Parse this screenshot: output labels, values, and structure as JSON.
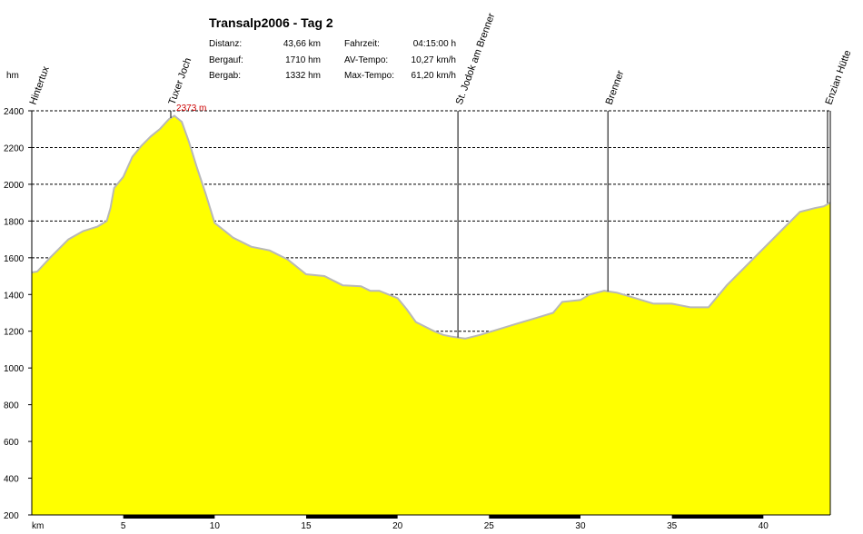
{
  "header": {
    "title": "Transalp2006 - Tag 2",
    "stats": [
      {
        "label": "Distanz:",
        "value": "43,66 km"
      },
      {
        "label": "Bergauf:",
        "value": "1710 hm"
      },
      {
        "label": "Bergab:",
        "value": "1332 hm"
      },
      {
        "label": "Fahrzeit:",
        "value": "04:15:00 h"
      },
      {
        "label": "AV-Tempo:",
        "value": "10,27 km/h"
      },
      {
        "label": "Max-Tempo:",
        "value": "61,20 km/h"
      }
    ]
  },
  "chart_data": {
    "type": "area",
    "title": "Transalp2006 - Tag 2",
    "xlabel": "km",
    "ylabel": "hm",
    "xlim": [
      0,
      43.66
    ],
    "ylim": [
      200,
      2400
    ],
    "x_ticks": [
      5,
      10,
      15,
      20,
      25,
      30,
      35,
      40
    ],
    "y_ticks": [
      200,
      400,
      600,
      800,
      1000,
      1200,
      1400,
      1600,
      1800,
      2000,
      2200,
      2400
    ],
    "grid": true,
    "fill_color": "#ffff00",
    "line_color": "#b8b8b8",
    "max_label": "2373 m",
    "max_color": "#cc0000",
    "x": [
      0,
      0.3,
      1,
      2,
      2.8,
      3.6,
      4.1,
      4.3,
      4.5,
      5,
      5.5,
      6,
      6.5,
      7,
      7.5,
      7.8,
      8.2,
      8.6,
      9,
      9.5,
      10,
      10.5,
      11,
      12,
      13,
      14,
      15,
      16,
      17,
      18,
      18.5,
      19,
      20,
      20.5,
      21,
      22,
      22.5,
      23,
      23.7,
      24.5,
      25.5,
      26.5,
      27.5,
      28.5,
      29,
      30,
      30.5,
      31.3,
      32,
      33,
      34,
      35,
      36,
      37,
      38,
      39,
      40,
      41,
      42,
      42.8,
      43.3,
      43.66
    ],
    "y": [
      1520,
      1525,
      1600,
      1700,
      1745,
      1770,
      1800,
      1870,
      1980,
      2040,
      2150,
      2210,
      2260,
      2300,
      2355,
      2373,
      2340,
      2230,
      2100,
      1950,
      1790,
      1750,
      1710,
      1660,
      1640,
      1590,
      1510,
      1500,
      1450,
      1445,
      1420,
      1420,
      1380,
      1320,
      1250,
      1200,
      1180,
      1170,
      1160,
      1180,
      1210,
      1240,
      1270,
      1300,
      1360,
      1370,
      1400,
      1420,
      1410,
      1380,
      1350,
      1350,
      1330,
      1330,
      1450,
      1550,
      1650,
      1750,
      1850,
      1870,
      1880,
      1900
    ],
    "markers": [
      {
        "label": "Hintertux",
        "x": 0
      },
      {
        "label": "Tuxer Joch",
        "x": 7.6
      },
      {
        "label": "St. Jodok am Brenner",
        "x": 23.3
      },
      {
        "label": "Brenner",
        "x": 31.5
      },
      {
        "label": "Enzian Hütte",
        "x": 43.6
      }
    ]
  }
}
